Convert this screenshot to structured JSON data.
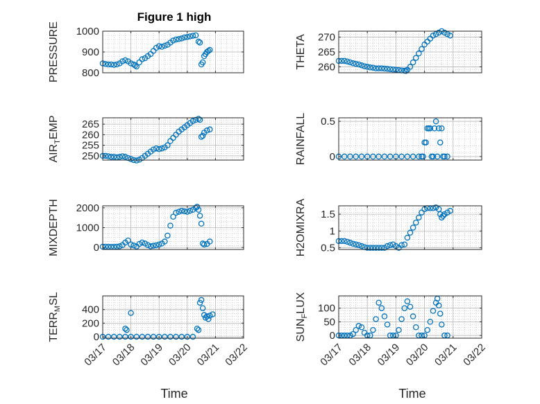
{
  "figure": {
    "title": "Figure 1 high",
    "xlabel": "Time"
  },
  "colors": {
    "marker": "#0072bd",
    "axis": "#262626",
    "grid": "#b4b4b4"
  },
  "x_axis": {
    "type": "date",
    "ticks": [
      "03/17",
      "03/18",
      "03/19",
      "03/20",
      "03/21",
      "03/22"
    ],
    "range": [
      "03/17",
      "03/22"
    ]
  },
  "chart_data": [
    {
      "type": "scatter",
      "ylabel": "PRESSURE",
      "ylim": [
        800,
        1000
      ],
      "yticks": [
        800,
        900,
        1000
      ],
      "x": [
        17.0,
        17.1,
        17.2,
        17.3,
        17.4,
        17.5,
        17.6,
        17.7,
        17.8,
        17.9,
        18.0,
        18.1,
        18.15,
        18.2,
        18.3,
        18.4,
        18.5,
        18.6,
        18.7,
        18.8,
        18.9,
        19.0,
        19.1,
        19.2,
        19.3,
        19.4,
        19.5,
        19.6,
        19.7,
        19.8,
        19.9,
        20.0,
        20.1,
        20.2,
        20.3,
        20.4,
        20.45,
        20.5,
        20.55,
        20.6,
        20.65,
        20.7,
        20.75,
        20.8
      ],
      "y": [
        845,
        842,
        840,
        840,
        838,
        840,
        845,
        855,
        860,
        855,
        845,
        840,
        835,
        830,
        850,
        865,
        870,
        880,
        890,
        905,
        920,
        928,
        925,
        930,
        935,
        945,
        955,
        960,
        962,
        965,
        970,
        972,
        975,
        978,
        980,
        950,
        945,
        840,
        850,
        880,
        890,
        900,
        905,
        910
      ]
    },
    {
      "type": "scatter",
      "ylabel": "THETA",
      "ylim": [
        258,
        272
      ],
      "yticks": [
        260,
        265,
        270
      ],
      "x": [
        17.0,
        17.1,
        17.2,
        17.3,
        17.4,
        17.5,
        17.6,
        17.7,
        17.8,
        17.9,
        18.0,
        18.1,
        18.2,
        18.3,
        18.4,
        18.5,
        18.6,
        18.7,
        18.8,
        18.9,
        19.0,
        19.1,
        19.2,
        19.3,
        19.35,
        19.4,
        19.5,
        19.6,
        19.7,
        19.8,
        19.9,
        20.0,
        20.1,
        20.2,
        20.3,
        20.4,
        20.5,
        20.6,
        20.7,
        20.8,
        20.9
      ],
      "y": [
        262,
        262,
        262,
        261.8,
        261.5,
        261.2,
        261,
        260.8,
        260.5,
        260.2,
        260,
        259.8,
        259.7,
        259.5,
        259.5,
        259.5,
        259.4,
        259.3,
        259.2,
        259.1,
        259,
        258.9,
        258.8,
        258.7,
        258.6,
        259,
        260,
        261.5,
        263,
        264.5,
        266,
        267.5,
        268.5,
        269.5,
        270.5,
        271,
        271.5,
        272,
        271.5,
        271,
        270.5
      ]
    },
    {
      "type": "scatter",
      "ylabel": "AIR_TEMP",
      "ylim": [
        248,
        268
      ],
      "yticks": [
        250,
        255,
        260,
        265
      ],
      "x": [
        17.0,
        17.1,
        17.2,
        17.3,
        17.4,
        17.5,
        17.6,
        17.7,
        17.8,
        17.9,
        18.0,
        18.1,
        18.2,
        18.3,
        18.4,
        18.5,
        18.6,
        18.7,
        18.8,
        18.9,
        19.0,
        19.1,
        19.2,
        19.3,
        19.4,
        19.5,
        19.6,
        19.7,
        19.8,
        19.9,
        20.0,
        20.1,
        20.2,
        20.3,
        20.4,
        20.45,
        20.5,
        20.55,
        20.6,
        20.7,
        20.8
      ],
      "y": [
        250,
        250,
        249.8,
        249.5,
        249.5,
        249.3,
        249.5,
        249.8,
        249.5,
        249,
        248.5,
        248,
        247.8,
        248.2,
        249,
        250,
        251,
        252,
        253,
        253.5,
        253.2,
        253.5,
        254,
        255,
        257,
        258.5,
        260,
        261.5,
        262.5,
        263.5,
        264.5,
        265.5,
        266.5,
        267,
        267.5,
        267,
        259,
        259.5,
        261,
        262,
        262.5
      ]
    },
    {
      "type": "scatter",
      "ylabel": "RAINFALL",
      "ylim": [
        -0.05,
        0.55
      ],
      "yticks": [
        0,
        0.5
      ],
      "x": [
        17.0,
        17.2,
        17.4,
        17.6,
        17.8,
        18.0,
        18.2,
        18.4,
        18.6,
        18.8,
        19.0,
        19.2,
        19.4,
        19.6,
        19.8,
        19.9,
        19.95,
        20.0,
        20.05,
        20.1,
        20.15,
        20.2,
        20.25,
        20.3,
        20.35,
        20.4,
        20.45,
        20.5,
        20.55,
        20.6,
        20.65,
        20.7,
        20.8
      ],
      "y": [
        0,
        0,
        0,
        0,
        0,
        0,
        0,
        0,
        0,
        0,
        0,
        0,
        0,
        0,
        0,
        0,
        0,
        0.2,
        0.2,
        0.4,
        0.4,
        0.4,
        0,
        0,
        0.4,
        0.5,
        0,
        0.4,
        0.2,
        0.4,
        0,
        0,
        0
      ]
    },
    {
      "type": "scatter",
      "ylabel": "MIXDEPTH",
      "ylim": [
        -100,
        2100
      ],
      "yticks": [
        0,
        1000,
        2000
      ],
      "x": [
        17.0,
        17.1,
        17.2,
        17.3,
        17.4,
        17.5,
        17.6,
        17.7,
        17.8,
        17.9,
        18.0,
        18.1,
        18.2,
        18.3,
        18.4,
        18.5,
        18.6,
        18.7,
        18.8,
        18.9,
        19.0,
        19.1,
        19.2,
        19.3,
        19.4,
        19.5,
        19.6,
        19.7,
        19.8,
        19.9,
        20.0,
        20.1,
        20.2,
        20.3,
        20.35,
        20.4,
        20.45,
        20.5,
        20.55,
        20.6,
        20.7,
        20.8
      ],
      "y": [
        40,
        40,
        35,
        30,
        30,
        40,
        60,
        120,
        250,
        350,
        150,
        100,
        50,
        180,
        250,
        200,
        120,
        60,
        90,
        110,
        150,
        200,
        300,
        600,
        1100,
        1550,
        1750,
        1800,
        1850,
        1820,
        1800,
        1850,
        1900,
        2000,
        2050,
        1900,
        1600,
        1200,
        200,
        150,
        180,
        300
      ]
    },
    {
      "type": "scatter",
      "ylabel": "H2OMIXRA",
      "ylim": [
        0.45,
        1.75
      ],
      "yticks": [
        0.5,
        1,
        1.5
      ],
      "x": [
        17.0,
        17.1,
        17.2,
        17.3,
        17.4,
        17.5,
        17.6,
        17.7,
        17.8,
        17.9,
        18.0,
        18.1,
        18.2,
        18.3,
        18.4,
        18.5,
        18.6,
        18.7,
        18.8,
        18.9,
        19.0,
        19.1,
        19.2,
        19.3,
        19.4,
        19.5,
        19.6,
        19.7,
        19.8,
        19.9,
        20.0,
        20.1,
        20.2,
        20.3,
        20.4,
        20.5,
        20.55,
        20.6,
        20.65,
        20.7,
        20.8,
        20.9
      ],
      "y": [
        0.7,
        0.7,
        0.7,
        0.68,
        0.65,
        0.62,
        0.6,
        0.58,
        0.55,
        0.52,
        0.5,
        0.5,
        0.5,
        0.5,
        0.5,
        0.5,
        0.5,
        0.55,
        0.58,
        0.6,
        0.55,
        0.5,
        0.58,
        0.6,
        0.8,
        0.95,
        1.1,
        1.25,
        1.4,
        1.55,
        1.65,
        1.68,
        1.68,
        1.68,
        1.7,
        1.65,
        1.5,
        1.4,
        1.45,
        1.5,
        1.55,
        1.6
      ]
    },
    {
      "type": "scatter",
      "ylabel": "TERR_MSL",
      "ylim": [
        -20,
        600
      ],
      "yticks": [
        0,
        200,
        400
      ],
      "x": [
        17.0,
        17.2,
        17.4,
        17.6,
        17.8,
        18.0,
        18.2,
        18.4,
        18.6,
        18.8,
        19.0,
        19.2,
        19.4,
        19.6,
        19.8,
        20.0,
        20.2,
        20.35,
        20.4,
        20.45,
        20.5,
        20.55,
        20.6,
        20.65,
        20.7,
        20.75,
        20.8,
        20.9,
        17.8,
        17.85,
        18.0
      ],
      "y": [
        0,
        0,
        0,
        0,
        0,
        0,
        0,
        0,
        0,
        0,
        0,
        0,
        0,
        0,
        0,
        0,
        0,
        120,
        100,
        500,
        540,
        420,
        320,
        280,
        300,
        260,
        310,
        330,
        120,
        100,
        350
      ]
    },
    {
      "type": "scatter",
      "ylabel": "SUN_FLUX",
      "ylim": [
        -10,
        145
      ],
      "yticks": [
        0,
        50,
        100
      ],
      "x": [
        17.0,
        17.1,
        17.2,
        17.3,
        17.4,
        17.5,
        17.6,
        17.7,
        17.8,
        17.9,
        18.0,
        18.1,
        18.2,
        18.3,
        18.4,
        18.5,
        18.6,
        18.7,
        18.8,
        18.9,
        19.0,
        19.1,
        19.2,
        19.3,
        19.4,
        19.5,
        19.6,
        19.7,
        19.8,
        19.9,
        20.0,
        20.1,
        20.2,
        20.3,
        20.4,
        20.45,
        20.5,
        20.55,
        20.6,
        20.7,
        20.8
      ],
      "y": [
        0,
        0,
        0,
        0,
        0,
        5,
        20,
        35,
        30,
        10,
        0,
        0,
        20,
        60,
        120,
        100,
        70,
        40,
        0,
        0,
        0,
        20,
        60,
        100,
        125,
        105,
        70,
        30,
        0,
        0,
        0,
        20,
        50,
        90,
        120,
        135,
        110,
        80,
        40,
        0,
        0
      ]
    }
  ]
}
